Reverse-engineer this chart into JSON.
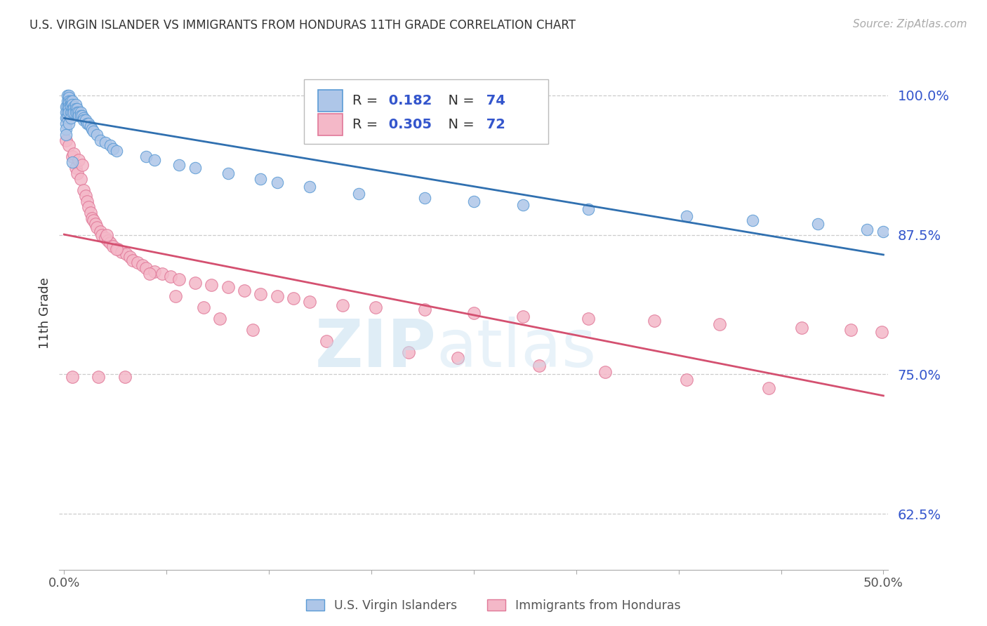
{
  "title": "U.S. VIRGIN ISLANDER VS IMMIGRANTS FROM HONDURAS 11TH GRADE CORRELATION CHART",
  "source": "Source: ZipAtlas.com",
  "ylabel": "11th Grade",
  "r1": 0.182,
  "n1": 74,
  "r2": 0.305,
  "n2": 72,
  "color_blue_fill": "#aec6e8",
  "color_blue_edge": "#5b9bd5",
  "color_pink_fill": "#f4b8c8",
  "color_pink_edge": "#e07898",
  "color_line_blue": "#3070b0",
  "color_line_pink": "#d45070",
  "color_title": "#333333",
  "color_ytick": "#3355cc",
  "color_source": "#aaaaaa",
  "color_grid": "#cccccc",
  "xlim_min": -0.003,
  "xlim_max": 0.503,
  "ylim_min": 0.575,
  "ylim_max": 1.035,
  "yticks": [
    0.625,
    0.75,
    0.875,
    1.0
  ],
  "blue_x": [
    0.001,
    0.001,
    0.001,
    0.001,
    0.001,
    0.001,
    0.002,
    0.002,
    0.002,
    0.002,
    0.002,
    0.003,
    0.003,
    0.003,
    0.003,
    0.003,
    0.003,
    0.003,
    0.003,
    0.004,
    0.004,
    0.004,
    0.004,
    0.004,
    0.005,
    0.005,
    0.005,
    0.005,
    0.006,
    0.006,
    0.006,
    0.007,
    0.007,
    0.007,
    0.008,
    0.008,
    0.009,
    0.009,
    0.01,
    0.01,
    0.011,
    0.012,
    0.012,
    0.013,
    0.014,
    0.015,
    0.016,
    0.017,
    0.018,
    0.02,
    0.022,
    0.025,
    0.028,
    0.03,
    0.032,
    0.05,
    0.055,
    0.07,
    0.08,
    0.1,
    0.12,
    0.13,
    0.15,
    0.18,
    0.22,
    0.25,
    0.28,
    0.32,
    0.38,
    0.42,
    0.46,
    0.49,
    0.5,
    0.005
  ],
  "blue_y": [
    0.99,
    0.985,
    0.98,
    0.975,
    0.97,
    0.965,
    1.0,
    0.995,
    0.99,
    0.985,
    0.98,
    1.0,
    0.998,
    0.995,
    0.993,
    0.99,
    0.988,
    0.985,
    0.975,
    0.995,
    0.992,
    0.99,
    0.985,
    0.98,
    0.995,
    0.992,
    0.988,
    0.985,
    0.99,
    0.988,
    0.985,
    0.992,
    0.988,
    0.985,
    0.988,
    0.985,
    0.985,
    0.982,
    0.985,
    0.982,
    0.982,
    0.98,
    0.978,
    0.978,
    0.975,
    0.975,
    0.972,
    0.97,
    0.968,
    0.965,
    0.96,
    0.958,
    0.955,
    0.952,
    0.95,
    0.945,
    0.942,
    0.938,
    0.935,
    0.93,
    0.925,
    0.922,
    0.918,
    0.912,
    0.908,
    0.905,
    0.902,
    0.898,
    0.892,
    0.888,
    0.885,
    0.88,
    0.878,
    0.94
  ],
  "pink_x": [
    0.001,
    0.003,
    0.005,
    0.007,
    0.008,
    0.01,
    0.012,
    0.013,
    0.014,
    0.015,
    0.016,
    0.017,
    0.018,
    0.019,
    0.02,
    0.022,
    0.023,
    0.025,
    0.027,
    0.028,
    0.03,
    0.033,
    0.035,
    0.038,
    0.04,
    0.042,
    0.045,
    0.048,
    0.05,
    0.055,
    0.06,
    0.065,
    0.07,
    0.08,
    0.09,
    0.1,
    0.11,
    0.12,
    0.13,
    0.14,
    0.15,
    0.17,
    0.19,
    0.22,
    0.25,
    0.28,
    0.32,
    0.36,
    0.4,
    0.45,
    0.48,
    0.499,
    0.006,
    0.009,
    0.011,
    0.026,
    0.032,
    0.052,
    0.068,
    0.085,
    0.095,
    0.115,
    0.16,
    0.21,
    0.24,
    0.29,
    0.33,
    0.38,
    0.43,
    0.005,
    0.021,
    0.037
  ],
  "pink_y": [
    0.96,
    0.955,
    0.945,
    0.935,
    0.93,
    0.925,
    0.915,
    0.91,
    0.905,
    0.9,
    0.895,
    0.89,
    0.888,
    0.885,
    0.882,
    0.878,
    0.875,
    0.872,
    0.87,
    0.868,
    0.865,
    0.862,
    0.86,
    0.858,
    0.855,
    0.852,
    0.85,
    0.848,
    0.845,
    0.842,
    0.84,
    0.838,
    0.835,
    0.832,
    0.83,
    0.828,
    0.825,
    0.822,
    0.82,
    0.818,
    0.815,
    0.812,
    0.81,
    0.808,
    0.805,
    0.802,
    0.8,
    0.798,
    0.795,
    0.792,
    0.79,
    0.788,
    0.948,
    0.942,
    0.938,
    0.875,
    0.862,
    0.84,
    0.82,
    0.81,
    0.8,
    0.79,
    0.78,
    0.77,
    0.765,
    0.758,
    0.752,
    0.745,
    0.738,
    0.748,
    0.748,
    0.748
  ]
}
